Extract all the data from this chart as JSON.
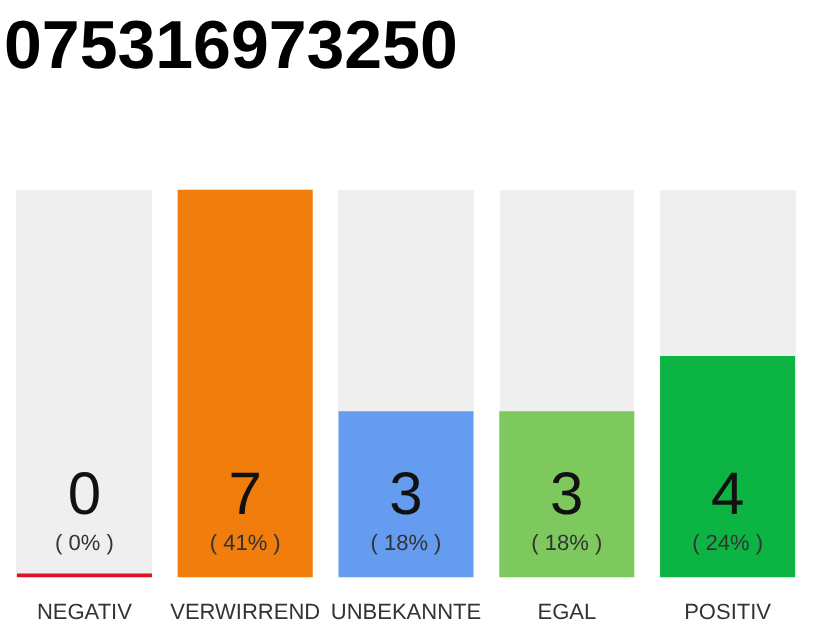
{
  "chart_data": {
    "type": "bar",
    "title": "075316973250",
    "categories": [
      "NEGATIV",
      "VERWIRREND",
      "UNBEKANNTE",
      "EGAL",
      "POSITIV"
    ],
    "values": [
      0,
      7,
      3,
      3,
      4
    ],
    "colors": [
      "#e0102c",
      "#f07d0c",
      "#659cef",
      "#7dc95e",
      "#0cb444"
    ],
    "data_labels": true,
    "annotations": [
      "( 0% )",
      "( 41% )",
      "( 18% )",
      "( 18% )",
      "( 24% )"
    ],
    "grid": false,
    "legend": false,
    "tick_labels": "x"
  }
}
